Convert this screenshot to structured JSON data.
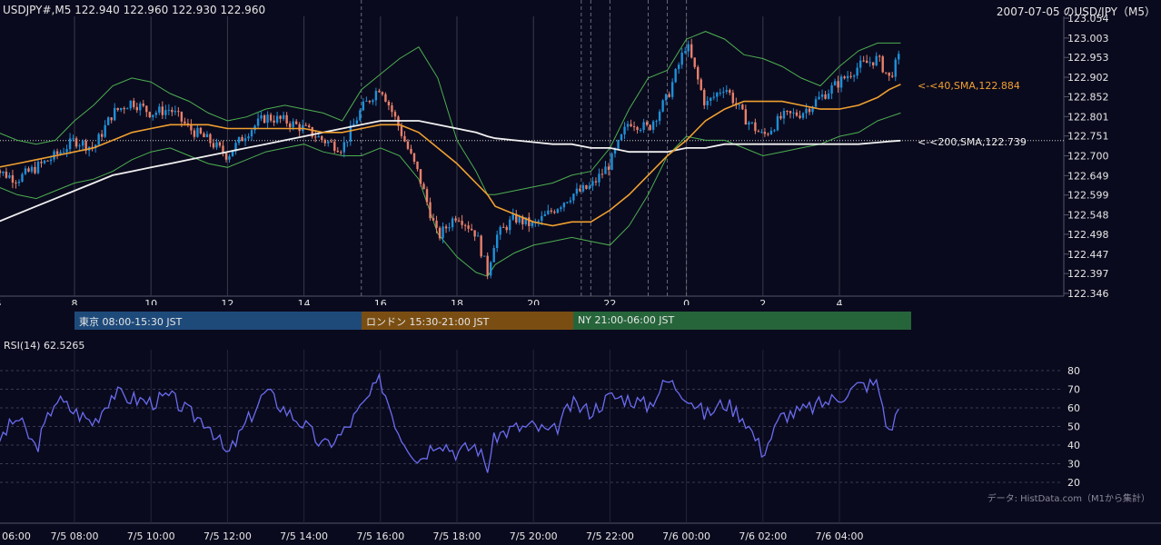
{
  "header": {
    "symbol_line": "USDJPY#,M5 122.940 122.960 122.930 122.960",
    "chart_title": "2007-07-05 のUSD/JPY（M5）"
  },
  "theme": {
    "background": "#0a0a1e",
    "grid": "#3a3a4a",
    "up_candle": "#1e90d8",
    "down_candle": "#e8806a",
    "sma40": "#f0a030",
    "sma200": "#f0f0f0",
    "bollinger": "#4caf50",
    "rsi_line": "#6a6cf0"
  },
  "price_axis": {
    "ticks": [
      "123.054",
      "123.003",
      "122.953",
      "122.902",
      "122.852",
      "122.801",
      "122.751",
      "122.700",
      "122.649",
      "122.599",
      "122.548",
      "122.498",
      "122.447",
      "122.397",
      "122.346"
    ],
    "range": [
      122.346,
      123.054
    ]
  },
  "time_axis_top": {
    "ticks": [
      "6",
      "8",
      "10",
      "12",
      "14",
      "16",
      "18",
      "20",
      "22",
      "0",
      "2",
      "4"
    ]
  },
  "time_axis_bottom": {
    "ticks": [
      "06:00",
      "7/5 08:00",
      "7/5 10:00",
      "7/5 12:00",
      "7/5 14:00",
      "7/5 16:00",
      "7/5 18:00",
      "7/5 20:00",
      "7/5 22:00",
      "7/6 00:00",
      "7/6 02:00",
      "7/6 04:00"
    ]
  },
  "annotations": {
    "sma40": "<-<40,SMA,122.884",
    "sma200": "<-<200,SMA,122.739"
  },
  "sessions": [
    {
      "label": "東京 08:00-15:30 JST",
      "color": "#1e4a7a"
    },
    {
      "label": "ロンドン 15:30-21:00 JST",
      "color": "#7a4e12"
    },
    {
      "label": "NY 21:00-06:00 JST",
      "color": "#26643a"
    }
  ],
  "rsi": {
    "label": "RSI(14) 62.5265",
    "ticks": [
      "80",
      "70",
      "60",
      "50",
      "40",
      "30",
      "20"
    ],
    "range": [
      20,
      80
    ]
  },
  "footer": {
    "source": "データ: HistData.com（M1から集計）"
  },
  "chart_data": {
    "type": "candlestick",
    "symbol": "USDJPY#",
    "timeframe": "M5",
    "last_quote": {
      "open": 122.94,
      "high": 122.96,
      "low": 122.93,
      "close": 122.96
    },
    "x_hours": [
      5.8,
      6.0,
      6.5,
      7.0,
      7.5,
      8.0,
      8.5,
      9.0,
      9.5,
      10.0,
      10.5,
      11.0,
      11.5,
      12.0,
      12.5,
      13.0,
      13.5,
      14.0,
      14.5,
      15.0,
      15.5,
      16.0,
      16.5,
      17.0,
      17.5,
      18.0,
      18.5,
      18.8,
      19.0,
      19.5,
      20.0,
      20.5,
      21.0,
      21.5,
      22.0,
      22.5,
      23.0,
      23.5,
      24.0,
      24.5,
      25.0,
      25.5,
      26.0,
      26.5,
      27.0,
      27.5,
      28.0,
      28.5,
      29.0,
      29.3,
      29.6
    ],
    "close": [
      122.75,
      122.66,
      122.64,
      122.67,
      122.7,
      122.74,
      122.72,
      122.81,
      122.84,
      122.81,
      122.82,
      122.77,
      122.74,
      122.7,
      122.76,
      122.8,
      122.79,
      122.77,
      122.74,
      122.72,
      122.82,
      122.88,
      122.77,
      122.65,
      122.49,
      122.55,
      122.5,
      122.4,
      122.49,
      122.54,
      122.52,
      122.56,
      122.6,
      122.62,
      122.68,
      122.79,
      122.77,
      122.85,
      122.99,
      122.83,
      122.88,
      122.8,
      122.75,
      122.8,
      122.81,
      122.85,
      122.89,
      122.93,
      122.95,
      122.9,
      122.96
    ],
    "sma40": [
      122.67,
      122.67,
      122.68,
      122.69,
      122.7,
      122.71,
      122.72,
      122.74,
      122.76,
      122.77,
      122.78,
      122.78,
      122.78,
      122.77,
      122.77,
      122.77,
      122.77,
      122.77,
      122.76,
      122.76,
      122.77,
      122.78,
      122.78,
      122.76,
      122.72,
      122.68,
      122.63,
      122.6,
      122.57,
      122.55,
      122.53,
      122.52,
      122.53,
      122.53,
      122.56,
      122.6,
      122.65,
      122.7,
      122.74,
      122.79,
      122.82,
      122.84,
      122.84,
      122.84,
      122.83,
      122.82,
      122.82,
      122.83,
      122.85,
      122.87,
      122.884
    ],
    "sma200": [
      122.52,
      122.53,
      122.55,
      122.57,
      122.59,
      122.61,
      122.63,
      122.65,
      122.66,
      122.67,
      122.68,
      122.69,
      122.7,
      122.71,
      122.72,
      122.73,
      122.74,
      122.75,
      122.76,
      122.77,
      122.78,
      122.79,
      122.79,
      122.79,
      122.78,
      122.77,
      122.76,
      122.75,
      122.745,
      122.74,
      122.735,
      122.73,
      122.73,
      122.72,
      122.72,
      122.71,
      122.71,
      122.71,
      122.72,
      122.72,
      122.73,
      122.73,
      122.73,
      122.73,
      122.73,
      122.73,
      122.73,
      122.73,
      122.734,
      122.737,
      122.739
    ],
    "bb_upper": [
      122.76,
      122.76,
      122.74,
      122.73,
      122.74,
      122.79,
      122.83,
      122.88,
      122.9,
      122.89,
      122.86,
      122.84,
      122.81,
      122.79,
      122.8,
      122.82,
      122.83,
      122.82,
      122.81,
      122.79,
      122.87,
      122.91,
      122.95,
      122.98,
      122.9,
      122.74,
      122.66,
      122.6,
      122.6,
      122.61,
      122.62,
      122.63,
      122.65,
      122.66,
      122.72,
      122.82,
      122.9,
      122.92,
      123.0,
      123.02,
      123.0,
      122.96,
      122.95,
      122.93,
      122.9,
      122.88,
      122.93,
      122.97,
      122.99,
      122.99,
      122.99
    ],
    "bb_lower": [
      122.64,
      122.62,
      122.6,
      122.59,
      122.61,
      122.63,
      122.64,
      122.66,
      122.69,
      122.71,
      122.72,
      122.7,
      122.68,
      122.67,
      122.69,
      122.71,
      122.72,
      122.73,
      122.71,
      122.7,
      122.7,
      122.72,
      122.7,
      122.64,
      122.5,
      122.44,
      122.4,
      122.39,
      122.42,
      122.45,
      122.47,
      122.48,
      122.49,
      122.48,
      122.47,
      122.52,
      122.6,
      122.7,
      122.75,
      122.74,
      122.74,
      122.72,
      122.7,
      122.71,
      122.72,
      122.73,
      122.75,
      122.76,
      122.79,
      122.8,
      122.81
    ],
    "rsi": [
      62,
      42,
      55,
      38,
      65,
      58,
      52,
      68,
      65,
      63,
      66,
      57,
      52,
      34,
      52,
      69,
      59,
      51,
      39,
      46,
      60,
      75,
      46,
      32,
      43,
      36,
      40,
      28,
      45,
      49,
      50,
      46,
      62,
      58,
      66,
      65,
      61,
      75,
      67,
      56,
      63,
      55,
      36,
      56,
      58,
      62,
      66,
      72,
      73,
      46,
      62.5265
    ],
    "rsi_range": [
      20,
      80
    ]
  }
}
